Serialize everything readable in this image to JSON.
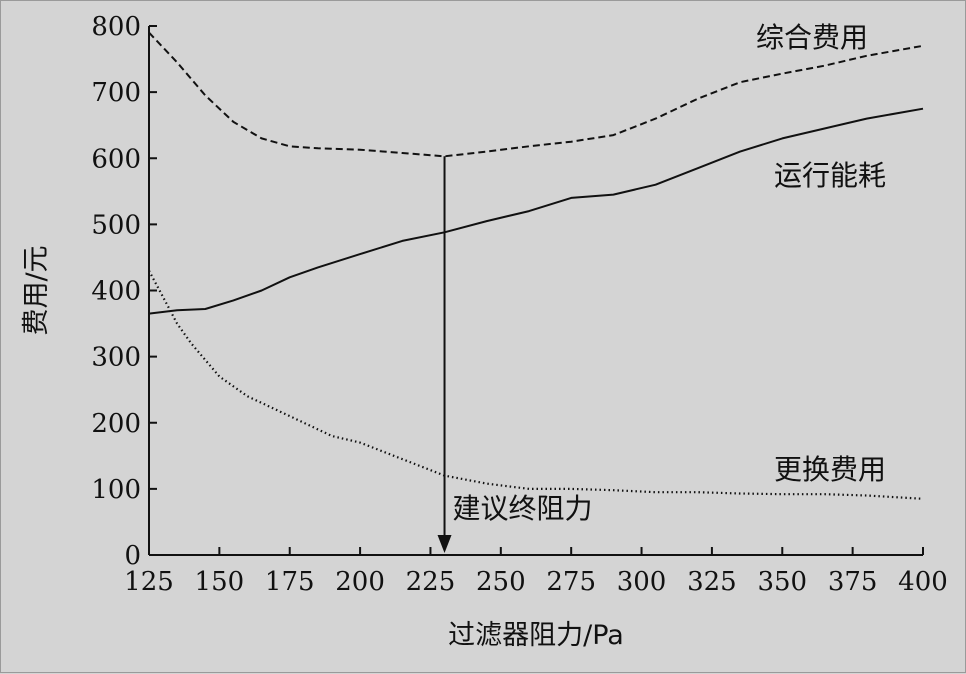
{
  "chart_data": {
    "type": "line",
    "title": "",
    "xlabel": "过滤器阻力/Pa",
    "ylabel": "费用/元",
    "xlim": [
      125,
      400
    ],
    "ylim": [
      0,
      800
    ],
    "x_ticks": [
      125,
      150,
      175,
      200,
      225,
      250,
      275,
      300,
      325,
      350,
      375,
      400
    ],
    "y_ticks": [
      0,
      100,
      200,
      300,
      400,
      500,
      600,
      700,
      800
    ],
    "grid": false,
    "series": [
      {
        "name": "综合费用",
        "style": "dashed",
        "x": [
          125,
          135,
          145,
          155,
          165,
          175,
          185,
          200,
          215,
          230,
          245,
          260,
          275,
          290,
          305,
          320,
          335,
          350,
          365,
          380,
          400
        ],
        "y": [
          790,
          745,
          695,
          655,
          630,
          618,
          615,
          613,
          608,
          603,
          610,
          618,
          625,
          635,
          660,
          690,
          715,
          728,
          740,
          755,
          770
        ]
      },
      {
        "name": "运行能耗",
        "style": "solid",
        "x": [
          125,
          135,
          145,
          155,
          165,
          175,
          185,
          200,
          215,
          230,
          245,
          260,
          275,
          290,
          305,
          320,
          335,
          350,
          365,
          380,
          400
        ],
        "y": [
          365,
          370,
          372,
          385,
          400,
          420,
          435,
          455,
          475,
          488,
          505,
          520,
          540,
          545,
          560,
          585,
          610,
          630,
          645,
          660,
          675
        ]
      },
      {
        "name": "更换费用",
        "style": "dotted",
        "x": [
          125,
          130,
          135,
          140,
          150,
          160,
          175,
          190,
          200,
          215,
          230,
          245,
          260,
          275,
          290,
          305,
          320,
          335,
          350,
          365,
          380,
          400
        ],
        "y": [
          430,
          390,
          350,
          320,
          270,
          240,
          210,
          180,
          170,
          145,
          120,
          108,
          100,
          100,
          98,
          95,
          95,
          93,
          92,
          92,
          90,
          85
        ]
      }
    ],
    "series_labels": [
      {
        "series": 0,
        "text": "综合费用"
      },
      {
        "series": 1,
        "text": "运行能耗"
      },
      {
        "series": 2,
        "text": "更换费用"
      }
    ],
    "annotations": [
      {
        "text": "建议终阻力",
        "arrow_x": 230,
        "arrow_from_y": 603,
        "arrow_to_y": 0
      }
    ]
  }
}
